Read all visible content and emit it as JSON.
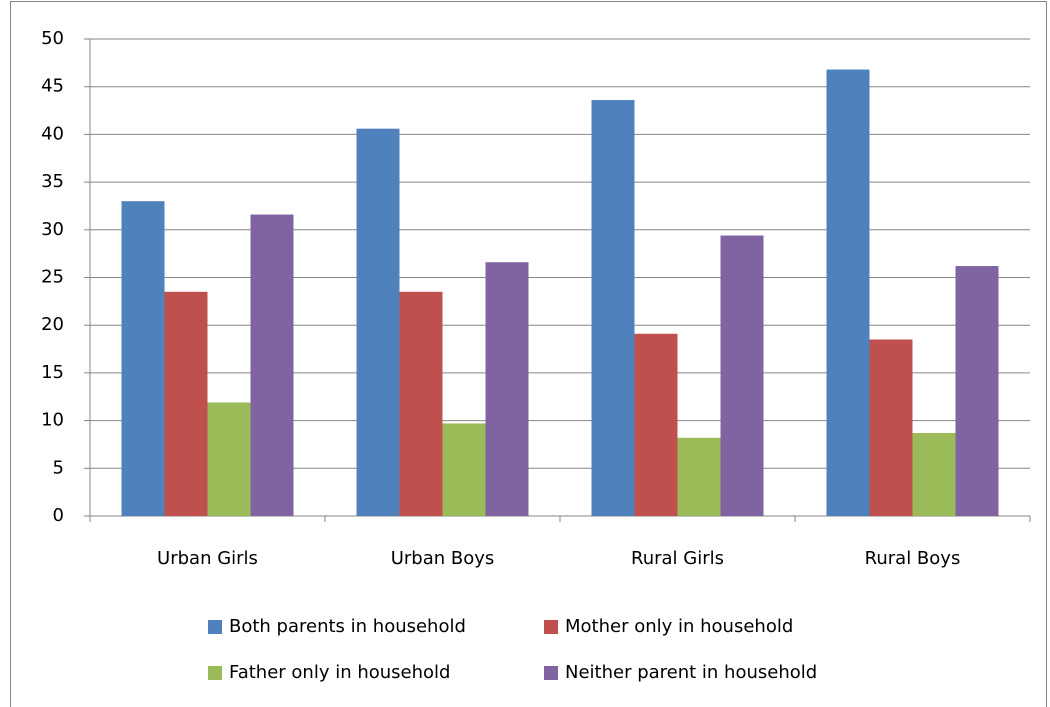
{
  "chart_data": {
    "type": "bar",
    "categories": [
      "Urban Girls",
      "Urban Boys",
      "Rural Girls",
      "Rural Boys"
    ],
    "series": [
      {
        "name": "Both parents in household",
        "color": "#4f81bd",
        "values": [
          33.0,
          40.6,
          43.6,
          46.8
        ]
      },
      {
        "name": "Mother only in household",
        "color": "#c0504d",
        "values": [
          23.5,
          23.5,
          19.1,
          18.5
        ]
      },
      {
        "name": "Father only in household",
        "color": "#9bbb59",
        "values": [
          11.9,
          9.7,
          8.2,
          8.7
        ]
      },
      {
        "name": "Neither parent in household",
        "color": "#8064a2",
        "values": [
          31.6,
          26.6,
          29.4,
          26.2
        ]
      }
    ],
    "ylim": [
      0,
      50
    ],
    "yticks": [
      0,
      5,
      10,
      15,
      20,
      25,
      30,
      35,
      40,
      45,
      50
    ],
    "grid": true,
    "legend": "bottom"
  }
}
